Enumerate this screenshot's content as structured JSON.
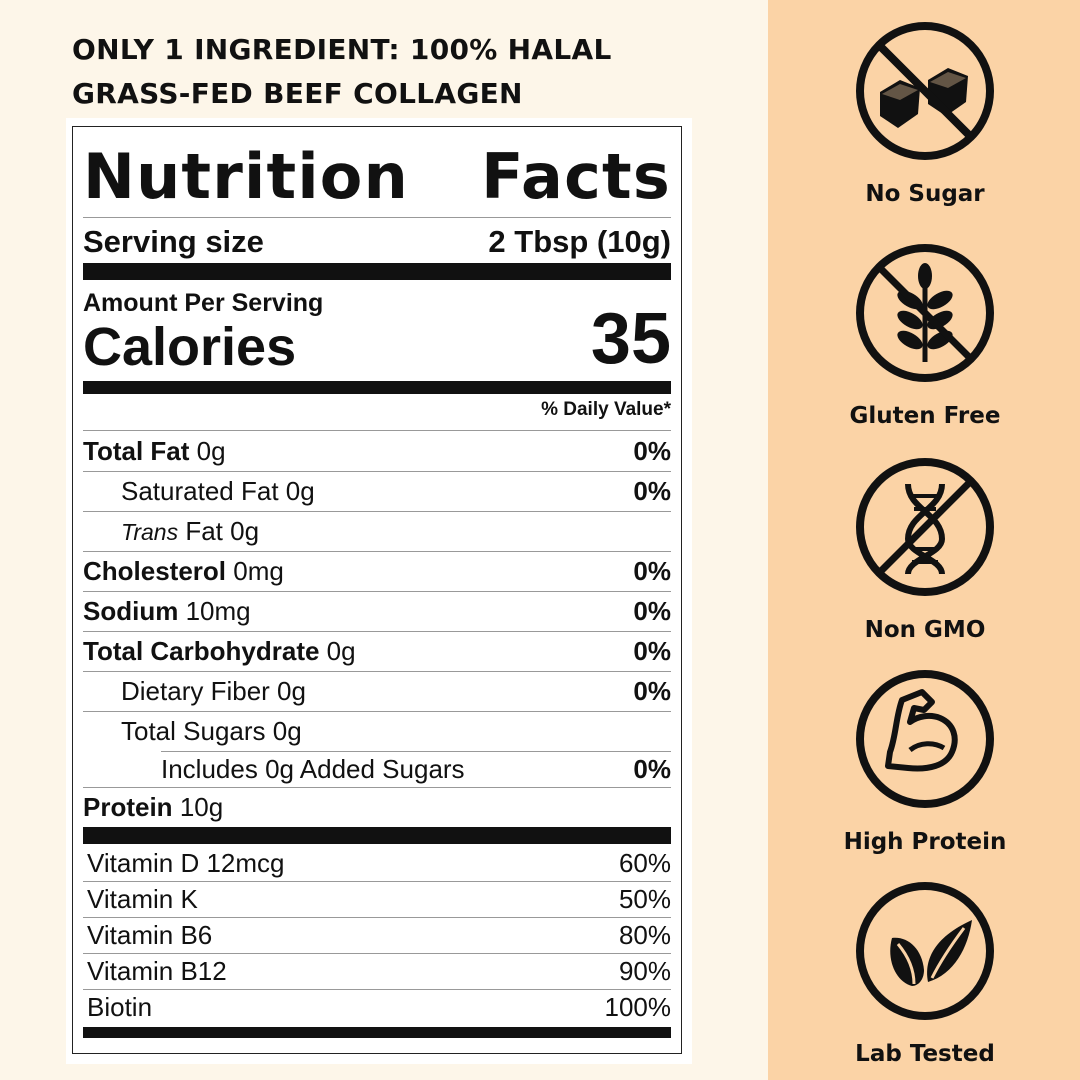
{
  "headline": {
    "line1": "ONLY 1 INGREDIENT: 100% HALAL",
    "line2": "GRASS-FED BEEF COLLAGEN"
  },
  "label": {
    "title_left": "Nutrition",
    "title_right": "Facts",
    "serving_label": "Serving size",
    "serving_value": "2 Tbsp (10g)",
    "amount_per_serving": "Amount Per Serving",
    "calories_label": "Calories",
    "calories_value": "35",
    "daily_value_header": "% Daily Value*",
    "nutrients": [
      {
        "name": "Total Fat",
        "amount": "0g",
        "pct": "0%"
      },
      {
        "name": "Saturated Fat 0g",
        "pct": "0%"
      },
      {
        "name_italic": "Trans",
        "name": "Fat 0g",
        "pct": ""
      },
      {
        "name": "Cholesterol",
        "amount": "0mg",
        "pct": "0%"
      },
      {
        "name": "Sodium",
        "amount": "10mg",
        "pct": "0%"
      },
      {
        "name": "Total Carbohydrate",
        "amount": "0g",
        "pct": "0%"
      },
      {
        "name": "Dietary Fiber 0g",
        "pct": "0%"
      },
      {
        "name": "Total Sugars 0g",
        "pct": ""
      },
      {
        "name": "Includes 0g Added Sugars",
        "pct": "0%"
      },
      {
        "name": "Protein",
        "amount": "10g",
        "pct": ""
      }
    ],
    "vitamins": [
      {
        "name": "Vitamin D 12mcg",
        "pct": "60%"
      },
      {
        "name": "Vitamin K",
        "pct": "50%"
      },
      {
        "name": "Vitamin B6",
        "pct": "80%"
      },
      {
        "name": "Vitamin B12",
        "pct": "90%"
      },
      {
        "name": "Biotin",
        "pct": "100%"
      }
    ]
  },
  "badges": [
    {
      "label": "No Sugar",
      "icon": "sugar-cubes-crossed-icon"
    },
    {
      "label": "Gluten Free",
      "icon": "wheat-crossed-icon"
    },
    {
      "label": "Non GMO",
      "icon": "dna-crossed-icon"
    },
    {
      "label": "High Protein",
      "icon": "flexed-arm-icon"
    },
    {
      "label": "Lab Tested",
      "icon": "leaves-icon"
    }
  ],
  "colors": {
    "left_background": "#fdf6e9",
    "right_background": "#fbd3a6",
    "ink": "#111111"
  }
}
